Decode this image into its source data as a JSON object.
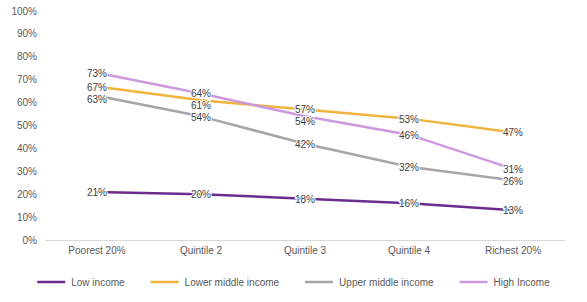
{
  "chart_data": {
    "type": "line",
    "categories": [
      "Poorest 20%",
      "Quintile 2",
      "Quintile 3",
      "Quintile 4",
      "Richest 20%"
    ],
    "series": [
      {
        "name": "Low income",
        "color": "#6a2c8e",
        "values": [
          21,
          20,
          18,
          16,
          13
        ],
        "value_labels": [
          "21%",
          "20%",
          "18%",
          "16%",
          "13%"
        ]
      },
      {
        "name": "Lower middle income",
        "color": "#f0b43c",
        "values": [
          67,
          61,
          57,
          53,
          47
        ],
        "value_labels": [
          "67%",
          "61%",
          "57%",
          "53%",
          "47%"
        ]
      },
      {
        "name": "Upper middle income",
        "color": "#a5a5a5",
        "values": [
          63,
          54,
          42,
          32,
          26
        ],
        "value_labels": [
          "63%",
          "54%",
          "42%",
          "32%",
          "26%"
        ]
      },
      {
        "name": "High Income",
        "color": "#cc99e0",
        "values": [
          73,
          64,
          54,
          46,
          31
        ],
        "value_labels": [
          "73%",
          "64%",
          "54%",
          "46%",
          "31%"
        ]
      }
    ],
    "ylim": [
      0,
      100
    ],
    "yticks": [
      {
        "value": 0,
        "label": "0%"
      },
      {
        "value": 10,
        "label": "10%"
      },
      {
        "value": 20,
        "label": "20%"
      },
      {
        "value": 30,
        "label": "30%"
      },
      {
        "value": 40,
        "label": "40%"
      },
      {
        "value": 50,
        "label": "50%"
      },
      {
        "value": 60,
        "label": "60%"
      },
      {
        "value": 70,
        "label": "70%"
      },
      {
        "value": 80,
        "label": "80%"
      },
      {
        "value": 90,
        "label": "90%"
      },
      {
        "value": 100,
        "label": "100%"
      }
    ],
    "grid": false,
    "legend": "bottom",
    "data_labels": true
  }
}
